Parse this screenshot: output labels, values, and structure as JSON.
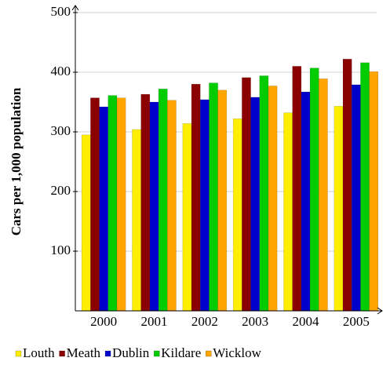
{
  "chart_data": {
    "type": "bar",
    "y_label": "Cars per 1,000 population",
    "categories": [
      "2000",
      "2001",
      "2002",
      "2003",
      "2004",
      "2005"
    ],
    "series": [
      {
        "name": "Louth",
        "color": "#ffee00",
        "values": [
          295,
          304,
          314,
          322,
          332,
          343
        ]
      },
      {
        "name": "Meath",
        "color": "#8b0000",
        "values": [
          357,
          363,
          380,
          391,
          410,
          422
        ]
      },
      {
        "name": "Dublin",
        "color": "#0000cc",
        "values": [
          342,
          350,
          354,
          358,
          367,
          379
        ]
      },
      {
        "name": "Kildare",
        "color": "#00cc00",
        "values": [
          361,
          372,
          382,
          394,
          407,
          416
        ]
      },
      {
        "name": "Wicklow",
        "color": "#ffa500",
        "values": [
          357,
          353,
          370,
          377,
          389,
          401
        ]
      }
    ],
    "ylim": [
      0,
      500
    ],
    "yticks": [
      100,
      200,
      300,
      400,
      500
    ],
    "grid": true,
    "legend": "bottom"
  }
}
